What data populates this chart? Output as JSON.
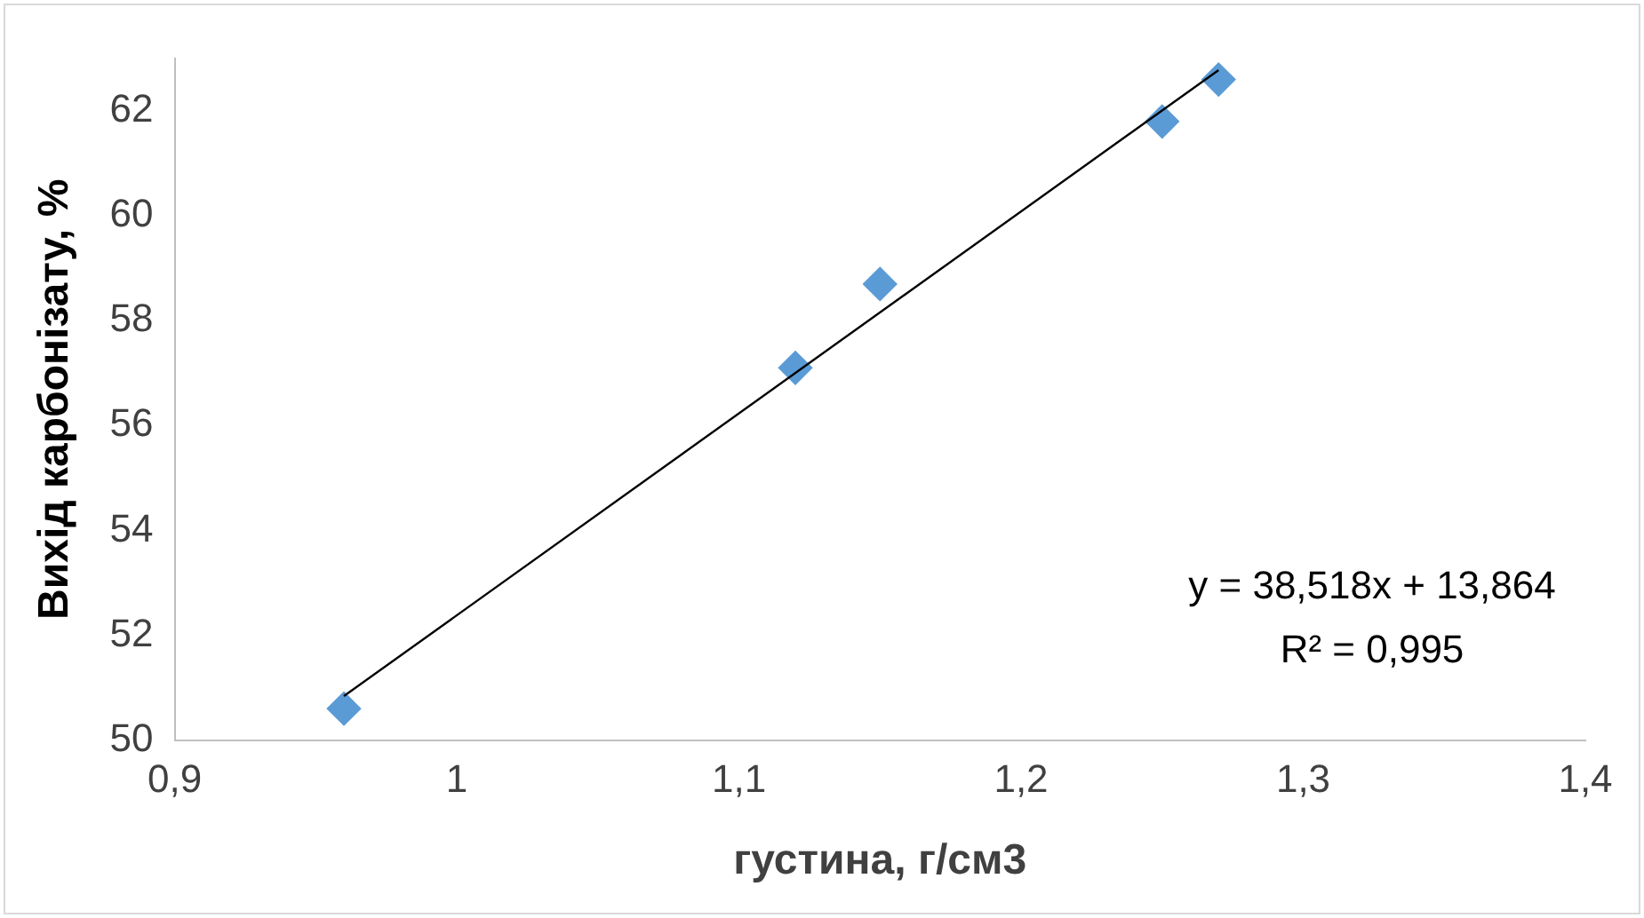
{
  "chart_data": {
    "type": "scatter",
    "xlabel": "густина, г/см3",
    "ylabel": "Вихід карбонізату, %",
    "xlim": [
      0.9,
      1.4
    ],
    "xticks": [
      {
        "value": 0.9,
        "label": "0,9"
      },
      {
        "value": 1,
        "label": "1"
      },
      {
        "value": 1.1,
        "label": "1,1"
      },
      {
        "value": 1.2,
        "label": "1,2"
      },
      {
        "value": 1.3,
        "label": "1,3"
      },
      {
        "value": 1.4,
        "label": "1,4"
      }
    ],
    "ylim": [
      50,
      63
    ],
    "yticks": [
      50,
      52,
      54,
      56,
      58,
      60,
      62
    ],
    "grid": false,
    "legend": false,
    "series": [
      {
        "type": "scatter",
        "color": "#5b9bd5",
        "marker": "diamond",
        "x": [
          0.96,
          1.12,
          1.15,
          1.25,
          1.27
        ],
        "values": [
          50.6,
          57.1,
          58.7,
          61.8,
          62.6
        ]
      },
      {
        "type": "line",
        "color": "#000000",
        "marker": "none",
        "line_style": "solid",
        "x": [
          0.96,
          1.27
        ],
        "values": [
          50.84,
          62.78
        ]
      }
    ],
    "annotations": [
      "y = 38,518x + 13,864",
      "R² = 0,995"
    ]
  }
}
